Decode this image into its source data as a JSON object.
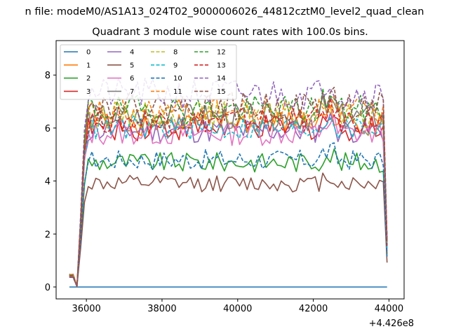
{
  "chart_data": {
    "type": "line",
    "suptitle": "n file: modeM0/AS1A13_024T02_9000006026_44812cztM0_level2_quad_clean",
    "title": "Quadrant 3 module wise count rates with 100.0s bins.",
    "xlabel": "",
    "ylabel": "",
    "offset_label": "+4.426e8",
    "x_offset": 442600000,
    "xlim": [
      35200,
      44400
    ],
    "ylim": [
      -0.45,
      9.3
    ],
    "xticks": [
      36000,
      38000,
      40000,
      42000,
      44000
    ],
    "xtick_labels": [
      "36000",
      "38000",
      "40000",
      "42000",
      "44000"
    ],
    "yticks": [
      0,
      2,
      4,
      6,
      8
    ],
    "ytick_labels": [
      "0",
      "2",
      "4",
      "6",
      "8"
    ],
    "grid": false,
    "legend_position": "upper-left",
    "series": [
      {
        "name": "0",
        "color": "#1f77b4",
        "style": "solid",
        "base": 0,
        "zero": true
      },
      {
        "name": "1",
        "color": "#ff7f0e",
        "style": "solid",
        "base": 6.2
      },
      {
        "name": "2",
        "color": "#2ca02c",
        "style": "solid",
        "base": 4.7
      },
      {
        "name": "3",
        "color": "#d62728",
        "style": "solid",
        "base": 6.0
      },
      {
        "name": "4",
        "color": "#9467bd",
        "style": "solid",
        "base": 5.9
      },
      {
        "name": "5",
        "color": "#8c564b",
        "style": "solid",
        "base": 3.9
      },
      {
        "name": "6",
        "color": "#e377c2",
        "style": "solid",
        "base": 5.8
      },
      {
        "name": "7",
        "color": "#7f7f7f",
        "style": "solid",
        "base": 6.4
      },
      {
        "name": "8",
        "color": "#bcbd22",
        "style": "dashed",
        "base": 6.5
      },
      {
        "name": "9",
        "color": "#17becf",
        "style": "dashed",
        "base": 6.0
      },
      {
        "name": "10",
        "color": "#1f77b4",
        "style": "dashed",
        "base": 4.8
      },
      {
        "name": "11",
        "color": "#ff7f0e",
        "style": "dashed",
        "base": 6.6
      },
      {
        "name": "12",
        "color": "#2ca02c",
        "style": "dashed",
        "base": 6.7
      },
      {
        "name": "13",
        "color": "#d62728",
        "style": "dashed",
        "base": 6.3
      },
      {
        "name": "14",
        "color": "#9467bd",
        "style": "dashed",
        "base": 7.3
      },
      {
        "name": "15",
        "color": "#8c564b",
        "style": "dashed",
        "base": 6.8
      }
    ]
  }
}
